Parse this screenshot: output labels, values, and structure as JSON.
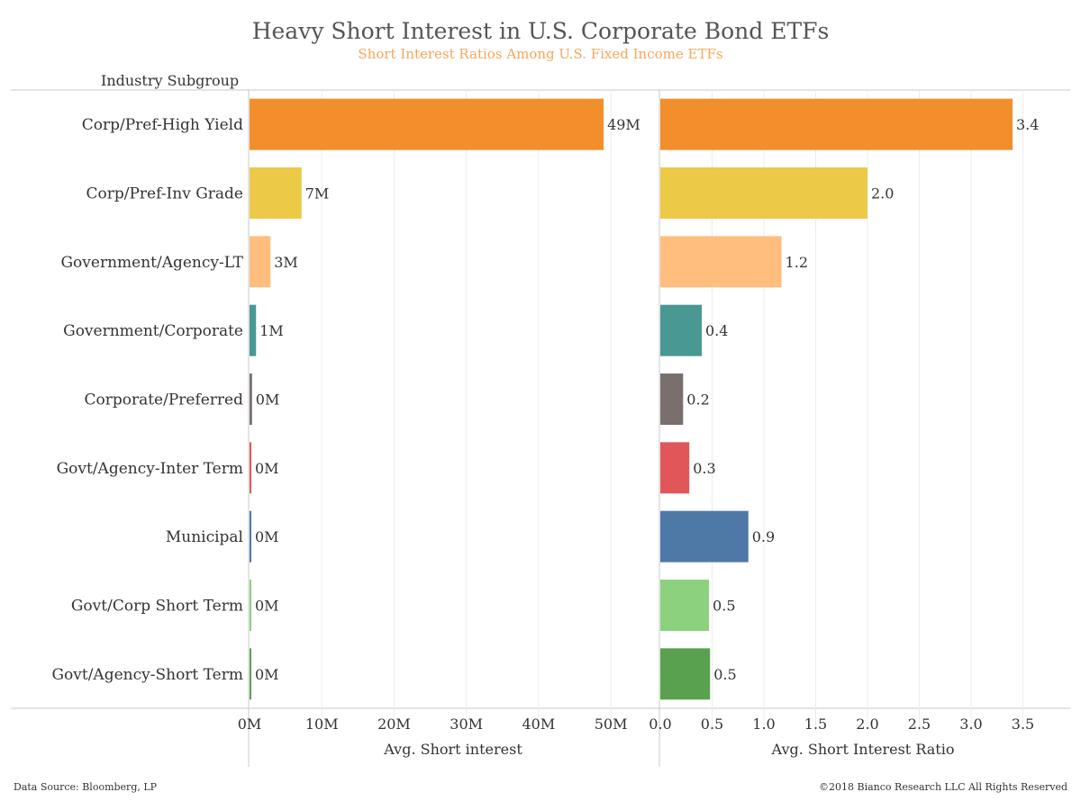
{
  "chart_data": {
    "title": "Heavy Short Interest in U.S. Corporate Bond ETFs",
    "subtitle": "Short Interest Ratios Among U.S. Fixed Income ETFs",
    "row_header": "Industry Subgroup",
    "type": "bar",
    "orientation": "horizontal",
    "categories": [
      "Corp/Pref-High Yield",
      "Corp/Pref-Inv Grade",
      "Government/Agency-LT",
      "Government/Corporate",
      "Corporate/Preferred",
      "Govt/Agency-Inter Term",
      "Municipal",
      "Govt/Corp Short Term",
      "Govt/Agency-Short Term"
    ],
    "colors": [
      "#f28e2b",
      "#edc948",
      "#ffbe7d",
      "#499894",
      "#79706e",
      "#e15759",
      "#4e79a7",
      "#8cd17d",
      "#59a14f"
    ],
    "panels": [
      {
        "xlabel": "Avg. Short interest",
        "values": [
          49,
          7.2,
          2.9,
          0.9,
          0.35,
          0.25,
          0.25,
          0.12,
          0.18
        ],
        "data_labels": [
          "49M",
          "7M",
          "3M",
          "1M",
          "0M",
          "0M",
          "0M",
          "0M",
          "0M"
        ],
        "ticks": [
          0,
          10,
          20,
          30,
          40,
          50
        ],
        "tick_labels": [
          "0M",
          "10M",
          "20M",
          "30M",
          "40M",
          "50M"
        ],
        "xlim": [
          0,
          54.6
        ]
      },
      {
        "xlabel": "Avg. Short Interest Ratio",
        "values": [
          3.4,
          2.0,
          1.17,
          0.4,
          0.22,
          0.28,
          0.85,
          0.47,
          0.48
        ],
        "data_labels": [
          "3.4",
          "2.0",
          "1.2",
          "0.4",
          "0.2",
          "0.3",
          "0.9",
          "0.5",
          "0.5"
        ],
        "ticks": [
          0,
          0.5,
          1.0,
          1.5,
          2.0,
          2.5,
          3.0,
          3.5
        ],
        "tick_labels": [
          "0.0",
          "0.5",
          "1.0",
          "1.5",
          "2.0",
          "2.5",
          "3.0",
          "3.5"
        ],
        "xlim": [
          0,
          3.8
        ]
      }
    ],
    "grid": true
  },
  "footer": {
    "source": "Data Source: Bloomberg, LP",
    "copyright": "©2018 Bianco Research LLC   All Rights Reserved"
  }
}
